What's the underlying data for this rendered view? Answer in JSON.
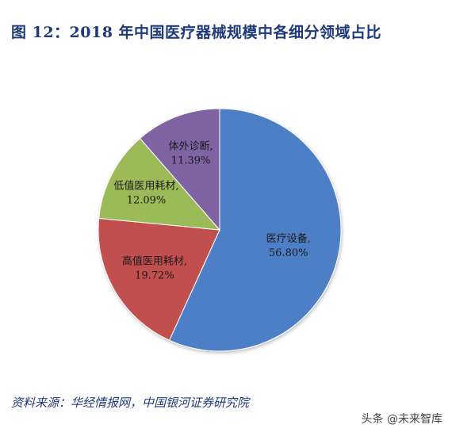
{
  "title": "图 12：2018 年中国医疗器械规模中各细分领域占比",
  "source": "资料来源：华经情报网，中国银河证券研究院",
  "watermark": "头条 @未来智库",
  "chart_data": {
    "type": "pie",
    "start_angle": "12 o'clock, clockwise",
    "slices": [
      {
        "label": "医疗设备,",
        "value": 56.8,
        "value_text": "56.80%",
        "color": "#4e7fc6"
      },
      {
        "label": "高值医用耗材,",
        "value": 19.72,
        "value_text": "19.72%",
        "color": "#c0504d"
      },
      {
        "label": "低值医用耗材,",
        "value": 12.09,
        "value_text": "12.09%",
        "color": "#9bbb59"
      },
      {
        "label": "体外诊断,",
        "value": 11.39,
        "value_text": "11.39%",
        "color": "#8064a2"
      }
    ]
  }
}
